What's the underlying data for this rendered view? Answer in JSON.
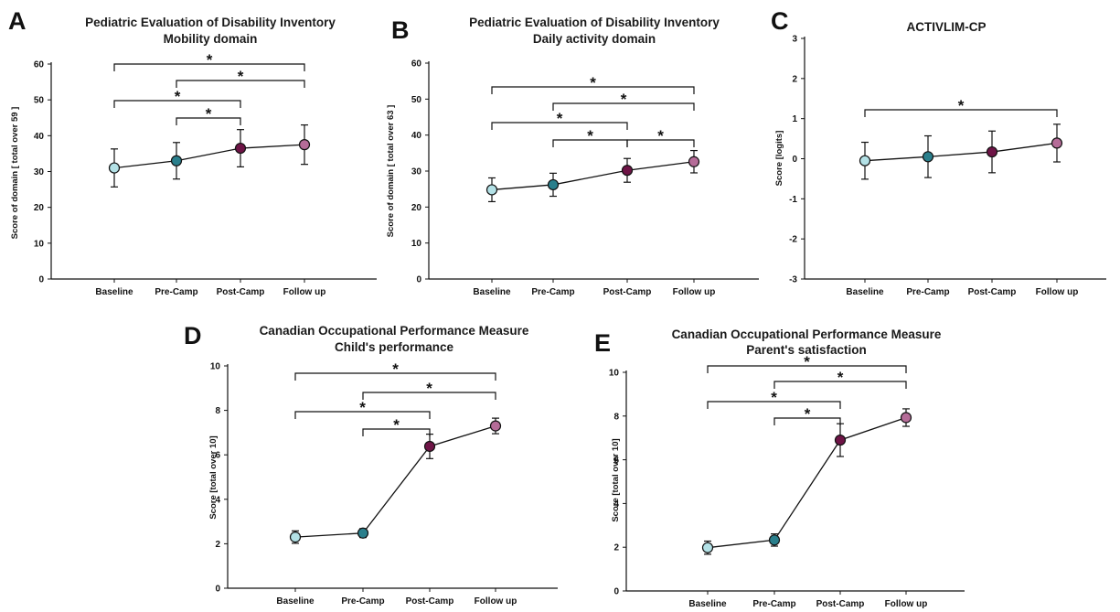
{
  "colors": {
    "baseline": "#b3e1e6",
    "pre_camp": "#2a7f8c",
    "post_camp": "#6e1446",
    "follow_up": "#b56c98"
  },
  "chart_data": [
    {
      "panel": "A",
      "type": "line",
      "title": [
        "Pediatric Evaluation of Disability Inventory",
        "Mobility domain"
      ],
      "ylabel": "Score of domain [ total over 59 ]",
      "categories": [
        "Baseline",
        "Pre-Camp",
        "Post-Camp",
        "Follow up"
      ],
      "values": [
        31,
        33,
        36.5,
        37.5
      ],
      "err": [
        5.3,
        5.1,
        5.2,
        5.5
      ],
      "ylim": [
        0,
        60
      ],
      "yticks": [
        0,
        10,
        20,
        30,
        40,
        50,
        60
      ],
      "significance": [
        {
          "from": "Baseline",
          "to": "Follow up",
          "label": "*"
        },
        {
          "from": "Pre-Camp",
          "to": "Follow up",
          "label": "*"
        },
        {
          "from": "Baseline",
          "to": "Post-Camp",
          "label": "*"
        },
        {
          "from": "Pre-Camp",
          "to": "Post-Camp",
          "label": "*"
        }
      ]
    },
    {
      "panel": "B",
      "type": "line",
      "title": [
        "Pediatric Evaluation of Disability Inventory",
        "Daily activity domain"
      ],
      "ylabel": "Score of domain [ total over 63 ]",
      "categories": [
        "Baseline",
        "Pre-Camp",
        "Post-Camp",
        "Follow up"
      ],
      "values": [
        24.8,
        26.2,
        30.2,
        32.6
      ],
      "err": [
        3.3,
        3.2,
        3.3,
        3.1
      ],
      "ylim": [
        0,
        60
      ],
      "yticks": [
        0,
        10,
        20,
        30,
        40,
        50,
        60
      ],
      "significance": [
        {
          "from": "Baseline",
          "to": "Follow up",
          "label": "*"
        },
        {
          "from": "Pre-Camp",
          "to": "Follow up",
          "label": "*"
        },
        {
          "from": "Baseline",
          "to": "Post-Camp",
          "label": "*"
        },
        {
          "from": "Pre-Camp",
          "to": "Post-Camp",
          "label": "*"
        },
        {
          "from": "Post-Camp",
          "to": "Follow up",
          "label": "*"
        }
      ]
    },
    {
      "panel": "C",
      "type": "line",
      "title": [
        "ACTIVLIM-CP"
      ],
      "ylabel": "Score [logits]",
      "categories": [
        "Baseline",
        "Pre-Camp",
        "Post-Camp",
        "Follow up"
      ],
      "values": [
        -0.05,
        0.05,
        0.17,
        0.39
      ],
      "err": [
        0.46,
        0.52,
        0.52,
        0.47
      ],
      "ylim": [
        -3,
        3
      ],
      "yticks": [
        -3,
        -2,
        -1,
        0,
        1,
        2,
        3
      ],
      "significance": [
        {
          "from": "Baseline",
          "to": "Follow up",
          "label": "*"
        }
      ]
    },
    {
      "panel": "D",
      "type": "line",
      "title": [
        "Canadian Occupational Performance Measure",
        "Child's performance"
      ],
      "ylabel": "Score [total over 10]",
      "categories": [
        "Baseline",
        "Pre-Camp",
        "Post-Camp",
        "Follow up"
      ],
      "values": [
        2.3,
        2.48,
        6.38,
        7.3
      ],
      "err": [
        0.28,
        0.2,
        0.55,
        0.35
      ],
      "ylim": [
        0,
        10
      ],
      "yticks": [
        0,
        2,
        4,
        6,
        8,
        10
      ],
      "significance": [
        {
          "from": "Baseline",
          "to": "Follow up",
          "label": "*"
        },
        {
          "from": "Pre-Camp",
          "to": "Follow up",
          "label": "*"
        },
        {
          "from": "Baseline",
          "to": "Post-Camp",
          "label": "*"
        },
        {
          "from": "Pre-Camp",
          "to": "Post-Camp",
          "label": "*"
        }
      ]
    },
    {
      "panel": "E",
      "type": "line",
      "title": [
        "Canadian Occupational Performance Measure",
        "Parent's satisfaction"
      ],
      "ylabel": "Score [total over 10]",
      "categories": [
        "Baseline",
        "Pre-Camp",
        "Post-Camp",
        "Follow up"
      ],
      "values": [
        1.98,
        2.33,
        6.9,
        7.93
      ],
      "err": [
        0.3,
        0.28,
        0.75,
        0.4
      ],
      "ylim": [
        0,
        10
      ],
      "yticks": [
        0,
        2,
        4,
        6,
        8,
        10
      ],
      "significance": [
        {
          "from": "Baseline",
          "to": "Follow up",
          "label": "*"
        },
        {
          "from": "Pre-Camp",
          "to": "Follow up",
          "label": "*"
        },
        {
          "from": "Baseline",
          "to": "Post-Camp",
          "label": "*"
        },
        {
          "from": "Pre-Camp",
          "to": "Post-Camp",
          "label": "*"
        }
      ]
    }
  ]
}
